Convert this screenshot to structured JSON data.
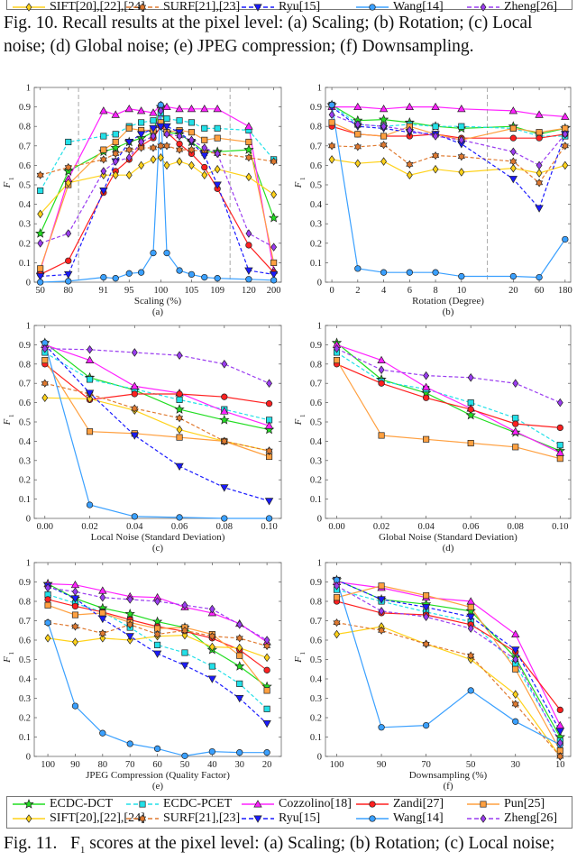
{
  "top_legend": [
    "SIFT[20],[22],[24]",
    "SURF[21],[23]",
    "Ryu[15]",
    "Wang[14]",
    "Zheng[26]"
  ],
  "fig10_caption": {
    "line1": "Fig. 10.  Recall results at the pixel level: (a) Scaling; (b) Rotation; (c) Local",
    "line2": "noise; (d) Global noise; (e) JPEG compression; (f) Downsampling."
  },
  "fig11_caption": {
    "prefix": "Fig. 11.   F",
    "sub": "1",
    "rest": " scores at the pixel level: (a) Scaling; (b) Rotation; (c) Local noise;"
  },
  "series_styles": [
    {
      "name": "ECDC-DCT",
      "color": "#22dd22",
      "dashed": false,
      "marker": "star"
    },
    {
      "name": "ECDC-PCET",
      "color": "#22e0e8",
      "dashed": true,
      "marker": "square"
    },
    {
      "name": "Cozzolino[18]",
      "color": "#ff22ff",
      "dashed": false,
      "marker": "triangle-up"
    },
    {
      "name": "Zandi[27]",
      "color": "#ff2020",
      "dashed": false,
      "marker": "circle"
    },
    {
      "name": "Pun[25]",
      "color": "#ffa040",
      "dashed": false,
      "marker": "square"
    },
    {
      "name": "SIFT[20],[22],[24]",
      "color": "#ffd21a",
      "dashed": false,
      "marker": "diamond"
    },
    {
      "name": "SURF[21],[23]",
      "color": "#e07a30",
      "dashed": true,
      "marker": "hexagram"
    },
    {
      "name": "Ryu[15]",
      "color": "#1a1aff",
      "dashed": true,
      "marker": "triangle-down"
    },
    {
      "name": "Wang[14]",
      "color": "#3aa0ff",
      "dashed": false,
      "marker": "circle"
    },
    {
      "name": "Zheng[26]",
      "color": "#9a3cf0",
      "dashed": true,
      "marker": "diamond"
    }
  ],
  "chart_data": [
    {
      "type": "line",
      "sublabel": "(a)",
      "xlabel": "Scaling (%)",
      "ylabel": "F",
      "ylabel_sub": "1",
      "ylim": [
        0,
        1
      ],
      "yticks": [
        "0",
        "0.1",
        "0.2",
        "0.3",
        "0.4",
        "0.5",
        "0.6",
        "0.7",
        "0.8",
        "0.9",
        "1"
      ],
      "categories": [
        50,
        80,
        91,
        93,
        95,
        97,
        99,
        100,
        101,
        103,
        105,
        107,
        109,
        120,
        200
      ],
      "xticks": [
        "50",
        "80",
        "91",
        "95",
        "100",
        "105",
        "109",
        "120",
        "200"
      ],
      "series": [
        {
          "name": "ECDC-DCT",
          "values": [
            0.25,
            0.57,
            0.67,
            0.69,
            0.72,
            0.74,
            0.77,
            0.9,
            0.77,
            0.76,
            0.72,
            0.67,
            0.67,
            0.68,
            0.33
          ]
        },
        {
          "name": "ECDC-PCET",
          "values": [
            0.47,
            0.72,
            0.75,
            0.76,
            0.8,
            0.82,
            0.83,
            0.87,
            0.84,
            0.83,
            0.82,
            0.79,
            0.79,
            0.78,
            0.63
          ]
        },
        {
          "name": "Cozzolino[18]",
          "values": [
            0.06,
            0.53,
            0.88,
            0.86,
            0.89,
            0.88,
            0.87,
            0.91,
            0.9,
            0.89,
            0.89,
            0.89,
            0.89,
            0.8,
            0.06
          ]
        },
        {
          "name": "Zandi[27]",
          "values": [
            0.04,
            0.11,
            0.46,
            0.57,
            0.63,
            0.7,
            0.74,
            0.8,
            0.77,
            0.71,
            0.66,
            0.59,
            0.48,
            0.19,
            0.05
          ]
        },
        {
          "name": "Pun[25]",
          "values": [
            0.07,
            0.5,
            0.68,
            0.72,
            0.79,
            0.78,
            0.78,
            0.82,
            0.77,
            0.78,
            0.77,
            0.73,
            0.74,
            0.72,
            0.1
          ]
        },
        {
          "name": "SIFT[20],[22],[24]",
          "values": [
            0.35,
            0.51,
            0.55,
            0.55,
            0.55,
            0.6,
            0.63,
            0.64,
            0.6,
            0.62,
            0.6,
            0.55,
            0.58,
            0.54,
            0.45
          ]
        },
        {
          "name": "SURF[21],[23]",
          "values": [
            0.55,
            0.59,
            0.63,
            0.66,
            0.68,
            0.69,
            0.69,
            0.7,
            0.7,
            0.68,
            0.68,
            0.67,
            0.66,
            0.64,
            0.62
          ]
        },
        {
          "name": "Ryu[15]",
          "values": [
            0.03,
            0.04,
            0.47,
            0.62,
            0.72,
            0.76,
            0.79,
            0.8,
            0.8,
            0.77,
            0.72,
            0.65,
            0.5,
            0.06,
            0.04
          ]
        },
        {
          "name": "Wang[14]",
          "values": [
            0.0,
            0.005,
            0.025,
            0.02,
            0.045,
            0.05,
            0.15,
            0.91,
            0.15,
            0.06,
            0.04,
            0.025,
            0.02,
            0.015,
            0.01
          ]
        },
        {
          "name": "Zheng[26]",
          "values": [
            0.2,
            0.25,
            0.57,
            0.62,
            0.64,
            0.72,
            0.75,
            0.88,
            0.76,
            0.75,
            0.73,
            0.69,
            0.66,
            0.25,
            0.18
          ]
        }
      ]
    },
    {
      "type": "line",
      "sublabel": "(b)",
      "xlabel": "Rotation (Degree)",
      "ylabel": "F",
      "ylabel_sub": "1",
      "ylim": [
        0,
        1
      ],
      "yticks": [
        "0",
        "0.1",
        "0.2",
        "0.3",
        "0.4",
        "0.5",
        "0.6",
        "0.7",
        "0.8",
        "0.9",
        "1"
      ],
      "categories": [
        0,
        2,
        4,
        6,
        8,
        10,
        20,
        60,
        180
      ],
      "xticks": [
        "0",
        "2",
        "4",
        "6",
        "8",
        "10",
        "20",
        "60",
        "180"
      ],
      "series": [
        {
          "name": "ECDC-DCT",
          "values": [
            0.91,
            0.83,
            0.835,
            0.82,
            0.8,
            0.79,
            0.8,
            0.76,
            0.79
          ]
        },
        {
          "name": "ECDC-PCET",
          "values": [
            0.91,
            0.81,
            0.8,
            0.81,
            0.8,
            0.8,
            0.79,
            0.75,
            0.75
          ]
        },
        {
          "name": "Cozzolino[18]",
          "values": [
            0.9,
            0.9,
            0.89,
            0.9,
            0.9,
            0.89,
            0.88,
            0.86,
            0.85
          ]
        },
        {
          "name": "Zandi[27]",
          "values": [
            0.8,
            0.76,
            0.75,
            0.75,
            0.76,
            0.74,
            0.74,
            0.74,
            0.76
          ]
        },
        {
          "name": "Pun[25]",
          "values": [
            0.82,
            0.76,
            0.75,
            0.8,
            0.76,
            0.73,
            0.79,
            0.77,
            0.79
          ]
        },
        {
          "name": "SIFT[20],[22],[24]",
          "values": [
            0.63,
            0.61,
            0.62,
            0.55,
            0.58,
            0.565,
            0.585,
            0.56,
            0.6
          ]
        },
        {
          "name": "SURF[21],[23]",
          "values": [
            0.7,
            0.695,
            0.705,
            0.605,
            0.65,
            0.645,
            0.62,
            0.51,
            0.7
          ]
        },
        {
          "name": "Ryu[15]",
          "values": [
            0.9,
            0.8,
            0.79,
            0.77,
            0.76,
            0.71,
            0.53,
            0.38,
            0.76
          ]
        },
        {
          "name": "Wang[14]",
          "values": [
            0.91,
            0.07,
            0.05,
            0.05,
            0.05,
            0.03,
            0.03,
            0.025,
            0.22
          ]
        },
        {
          "name": "Zheng[26]",
          "values": [
            0.86,
            0.81,
            0.8,
            0.78,
            0.75,
            0.73,
            0.67,
            0.6,
            0.76
          ]
        }
      ]
    },
    {
      "type": "line",
      "sublabel": "(c)",
      "xlabel": "Local Noise (Standard Deviation)",
      "ylabel": "F",
      "ylabel_sub": "1",
      "ylim": [
        0,
        1
      ],
      "yticks": [
        "0",
        "0.1",
        "0.2",
        "0.3",
        "0.4",
        "0.5",
        "0.6",
        "0.7",
        "0.8",
        "0.9",
        "1"
      ],
      "categories": [
        0.0,
        0.02,
        0.04,
        0.06,
        0.08,
        0.1
      ],
      "xticks": [
        "0.00",
        "0.02",
        "0.04",
        "0.06",
        "0.08",
        "0.10"
      ],
      "series": [
        {
          "name": "ECDC-DCT",
          "values": [
            0.91,
            0.73,
            0.665,
            0.565,
            0.51,
            0.46
          ]
        },
        {
          "name": "ECDC-PCET",
          "values": [
            0.86,
            0.72,
            0.67,
            0.615,
            0.565,
            0.51
          ]
        },
        {
          "name": "Cozzolino[18]",
          "values": [
            0.9,
            0.82,
            0.685,
            0.65,
            0.555,
            0.48
          ]
        },
        {
          "name": "Zandi[27]",
          "values": [
            0.8,
            0.615,
            0.645,
            0.645,
            0.63,
            0.595
          ]
        },
        {
          "name": "Pun[25]",
          "values": [
            0.82,
            0.45,
            0.44,
            0.42,
            0.4,
            0.32
          ]
        },
        {
          "name": "SIFT[20],[22],[24]",
          "values": [
            0.625,
            0.62,
            0.56,
            0.46,
            0.4,
            0.35
          ]
        },
        {
          "name": "SURF[21],[23]",
          "values": [
            0.7,
            0.645,
            0.57,
            0.52,
            0.4,
            0.35
          ]
        },
        {
          "name": "Ryu[15]",
          "values": [
            0.9,
            0.65,
            0.43,
            0.27,
            0.16,
            0.09
          ]
        },
        {
          "name": "Wang[14]",
          "values": [
            0.91,
            0.07,
            0.01,
            0.005,
            0.0,
            0.0
          ]
        },
        {
          "name": "Zheng[26]",
          "values": [
            0.88,
            0.875,
            0.86,
            0.845,
            0.8,
            0.7
          ]
        }
      ]
    },
    {
      "type": "line",
      "sublabel": "(d)",
      "xlabel": "Global Noise (Standard Deviation)",
      "ylabel": "F",
      "ylabel_sub": "1",
      "ylim": [
        0,
        1
      ],
      "yticks": [
        "0",
        "0.1",
        "0.2",
        "0.3",
        "0.4",
        "0.5",
        "0.6",
        "0.7",
        "0.8",
        "0.9",
        "1"
      ],
      "categories": [
        0.0,
        0.02,
        0.04,
        0.06,
        0.08,
        0.1
      ],
      "xticks": [
        "0.00",
        "0.02",
        "0.04",
        "0.06",
        "0.08",
        "0.10"
      ],
      "series": [
        {
          "name": "ECDC-DCT",
          "values": [
            0.91,
            0.72,
            0.65,
            0.535,
            0.445,
            0.35
          ]
        },
        {
          "name": "ECDC-PCET",
          "values": [
            0.86,
            0.71,
            0.67,
            0.6,
            0.52,
            0.38
          ]
        },
        {
          "name": "Cozzolino[18]",
          "values": [
            0.9,
            0.82,
            0.68,
            0.57,
            0.45,
            0.34
          ]
        },
        {
          "name": "Zandi[27]",
          "values": [
            0.8,
            0.7,
            0.625,
            0.565,
            0.49,
            0.47
          ]
        },
        {
          "name": "Pun[25]",
          "values": [
            0.82,
            0.43,
            0.41,
            0.39,
            0.37,
            0.31
          ]
        },
        {
          "name": "Zheng[26]",
          "values": [
            0.88,
            0.77,
            0.74,
            0.73,
            0.7,
            0.6
          ]
        }
      ]
    },
    {
      "type": "line",
      "sublabel": "(e)",
      "xlabel": "JPEG Compression (Quality Factor)",
      "ylabel": "F",
      "ylabel_sub": "1",
      "ylim": [
        0,
        1
      ],
      "yticks": [
        "0",
        "0.1",
        "0.2",
        "0.3",
        "0.4",
        "0.5",
        "0.6",
        "0.7",
        "0.8",
        "0.9",
        "1"
      ],
      "categories": [
        100,
        90,
        80,
        70,
        60,
        50,
        40,
        30,
        20
      ],
      "xticks": [
        "100",
        "90",
        "80",
        "70",
        "60",
        "50",
        "40",
        "30",
        "20"
      ],
      "series": [
        {
          "name": "ECDC-DCT",
          "values": [
            0.89,
            0.815,
            0.765,
            0.735,
            0.695,
            0.665,
            0.55,
            0.465,
            0.36
          ]
        },
        {
          "name": "ECDC-PCET",
          "values": [
            0.835,
            0.79,
            0.745,
            0.665,
            0.575,
            0.535,
            0.465,
            0.375,
            0.245
          ]
        },
        {
          "name": "Cozzolino[18]",
          "values": [
            0.89,
            0.885,
            0.855,
            0.825,
            0.82,
            0.77,
            0.74,
            0.685,
            0.59
          ]
        },
        {
          "name": "Zandi[27]",
          "values": [
            0.81,
            0.775,
            0.745,
            0.705,
            0.67,
            0.645,
            0.61,
            0.55,
            0.445
          ]
        },
        {
          "name": "Pun[25]",
          "values": [
            0.78,
            0.73,
            0.74,
            0.69,
            0.66,
            0.665,
            0.63,
            0.52,
            0.34
          ]
        },
        {
          "name": "SIFT[20],[22],[24]",
          "values": [
            0.61,
            0.59,
            0.61,
            0.6,
            0.62,
            0.625,
            0.565,
            0.56,
            0.51
          ]
        },
        {
          "name": "SURF[21],[23]",
          "values": [
            0.69,
            0.67,
            0.635,
            0.68,
            0.63,
            0.65,
            0.62,
            0.61,
            0.57
          ]
        },
        {
          "name": "Ryu[15]",
          "values": [
            0.88,
            0.815,
            0.71,
            0.62,
            0.53,
            0.47,
            0.4,
            0.3,
            0.17
          ]
        },
        {
          "name": "Wang[14]",
          "values": [
            0.69,
            0.26,
            0.12,
            0.065,
            0.04,
            0.003,
            0.025,
            0.02,
            0.02
          ]
        },
        {
          "name": "Zheng[26]",
          "values": [
            0.87,
            0.85,
            0.82,
            0.81,
            0.8,
            0.78,
            0.76,
            0.68,
            0.6
          ]
        }
      ]
    },
    {
      "type": "line",
      "sublabel": "(f)",
      "xlabel": "Downsampling (%)",
      "ylabel": "F",
      "ylabel_sub": "1",
      "ylim": [
        0,
        1
      ],
      "yticks": [
        "0",
        "0.1",
        "0.2",
        "0.3",
        "0.4",
        "0.5",
        "0.6",
        "0.7",
        "0.8",
        "0.9",
        "1"
      ],
      "categories": [
        100,
        90,
        70,
        50,
        30,
        10
      ],
      "xticks": [
        "100",
        "90",
        "70",
        "50",
        "30",
        "10"
      ],
      "series": [
        {
          "name": "ECDC-DCT",
          "values": [
            0.91,
            0.81,
            0.785,
            0.75,
            0.51,
            0.1
          ]
        },
        {
          "name": "ECDC-PCET",
          "values": [
            0.86,
            0.8,
            0.745,
            0.695,
            0.475,
            0.08
          ]
        },
        {
          "name": "Cozzolino[18]",
          "values": [
            0.9,
            0.87,
            0.82,
            0.8,
            0.63,
            0.16
          ]
        },
        {
          "name": "Zandi[27]",
          "values": [
            0.8,
            0.74,
            0.73,
            0.68,
            0.54,
            0.24
          ]
        },
        {
          "name": "Pun[25]",
          "values": [
            0.82,
            0.88,
            0.83,
            0.77,
            0.45,
            0.03
          ]
        },
        {
          "name": "SIFT[20],[22],[24]",
          "values": [
            0.63,
            0.67,
            0.58,
            0.5,
            0.32,
            0.0
          ]
        },
        {
          "name": "SURF[21],[23]",
          "values": [
            0.69,
            0.65,
            0.58,
            0.52,
            0.27,
            0.0
          ]
        },
        {
          "name": "Ryu[15]",
          "values": [
            0.91,
            0.81,
            0.77,
            0.72,
            0.55,
            0.13
          ]
        },
        {
          "name": "Wang[14]",
          "values": [
            0.91,
            0.15,
            0.16,
            0.34,
            0.18,
            0.06
          ]
        },
        {
          "name": "Zheng[26]",
          "values": [
            0.88,
            0.75,
            0.72,
            0.66,
            0.5,
            0.07
          ]
        }
      ]
    }
  ]
}
